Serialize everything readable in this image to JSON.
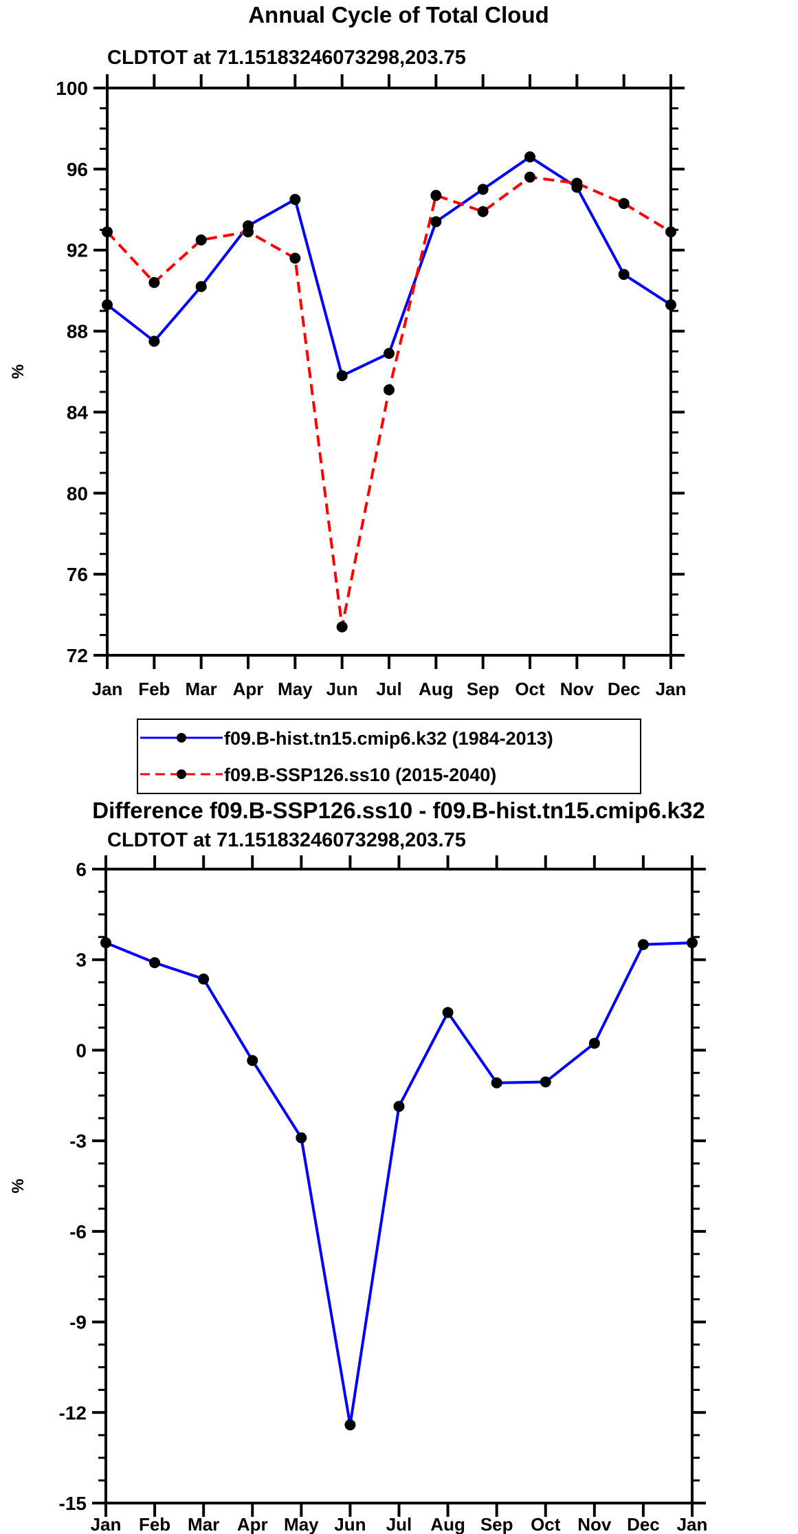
{
  "chart_data": [
    {
      "type": "line",
      "title": "Annual Cycle of Total Cloud",
      "subtitle": "CLDTOT at 71.15183246073298,203.75",
      "xlabel": "",
      "ylabel": "%",
      "ylim": [
        72,
        100
      ],
      "yticks": [
        72,
        76,
        80,
        84,
        88,
        92,
        96,
        100
      ],
      "ytick_labels": [
        "72",
        "76",
        "80",
        "84",
        "88",
        "92",
        "96",
        "100"
      ],
      "categories": [
        "Jan",
        "Feb",
        "Mar",
        "Apr",
        "May",
        "Jun",
        "Jul",
        "Aug",
        "Sep",
        "Oct",
        "Nov",
        "Dec",
        "Jan"
      ],
      "legend_placement": "bottom-center",
      "series": [
        {
          "name": "f09.B-hist.tn15.cmip6.k32 (1984-2013)",
          "color": "#0000ff",
          "dash": false,
          "values": [
            89.3,
            87.5,
            90.2,
            93.2,
            94.5,
            85.8,
            86.9,
            93.4,
            95.0,
            96.6,
            95.1,
            90.8,
            89.3
          ]
        },
        {
          "name": "f09.B-SSP126.ss10 (2015-2040)",
          "color": "#ff0000",
          "dash": true,
          "values": [
            92.9,
            90.4,
            92.5,
            92.9,
            91.6,
            73.4,
            85.1,
            94.7,
            93.9,
            95.6,
            95.3,
            94.3,
            92.9
          ]
        }
      ]
    },
    {
      "type": "line",
      "title": "Difference f09.B-SSP126.ss10 - f09.B-hist.tn15.cmip6.k32",
      "subtitle": "CLDTOT at 71.15183246073298,203.75",
      "xlabel": "",
      "ylabel": "%",
      "ylim": [
        -15,
        6
      ],
      "yticks": [
        -15,
        -12,
        -9,
        -6,
        -3,
        0,
        3,
        6
      ],
      "ytick_labels": [
        "-15",
        "-12",
        "-9",
        "-6",
        "-3",
        "0",
        "3",
        "6"
      ],
      "categories": [
        "Jan",
        "Feb",
        "Mar",
        "Apr",
        "May",
        "Jun",
        "Jul",
        "Aug",
        "Sep",
        "Oct",
        "Nov",
        "Dec",
        "Jan"
      ],
      "series": [
        {
          "name": "difference",
          "color": "#0000ff",
          "dash": false,
          "values": [
            3.56,
            2.9,
            2.36,
            -0.34,
            -2.9,
            -12.41,
            -1.86,
            1.25,
            -1.08,
            -1.05,
            0.23,
            3.5,
            3.56
          ]
        }
      ]
    }
  ]
}
